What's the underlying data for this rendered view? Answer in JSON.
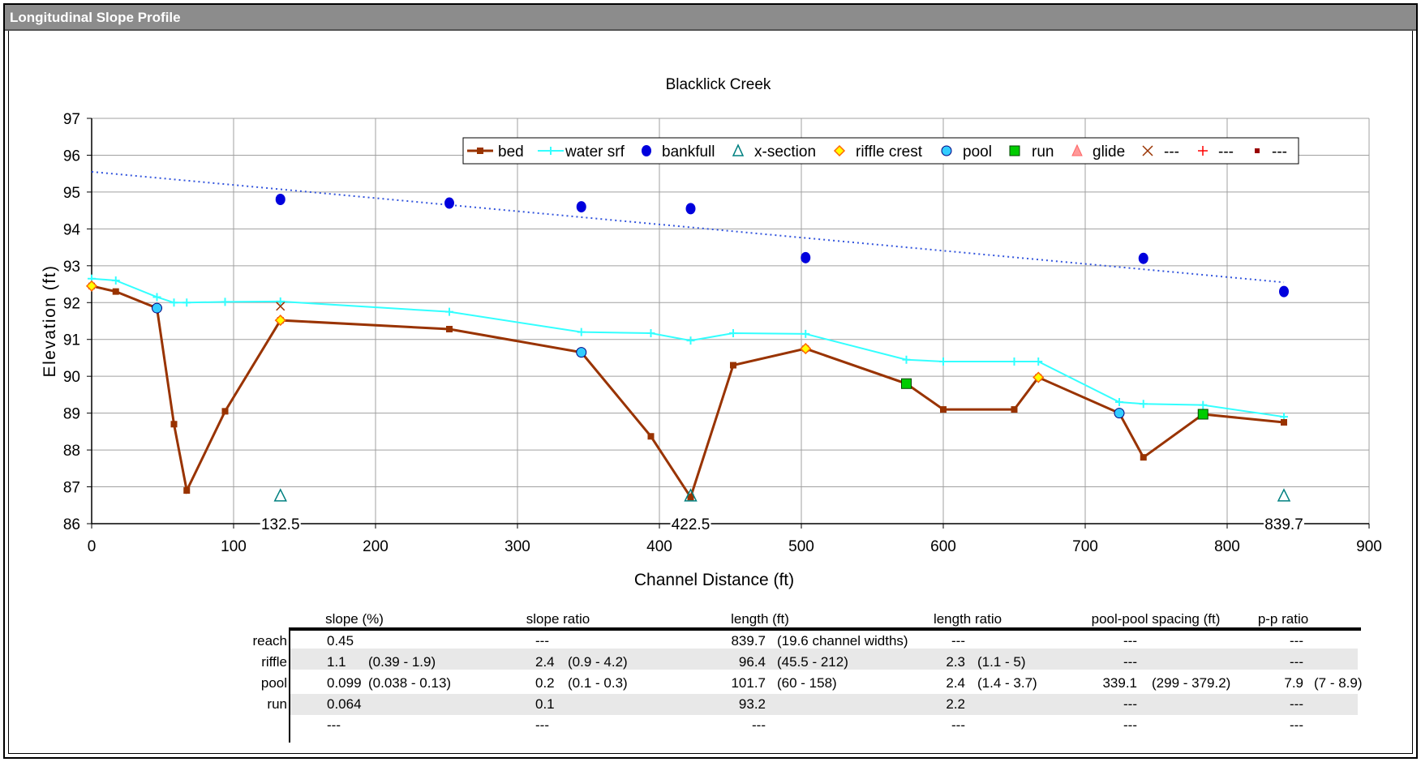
{
  "window": {
    "title": "Longitudinal Slope Profile"
  },
  "chart_data": {
    "type": "line",
    "title": "Blacklick Creek",
    "xlabel": "Channel Distance (ft)",
    "ylabel": "Elevation (ft)",
    "xlim": [
      0,
      900
    ],
    "ylim": [
      86,
      97
    ],
    "xticks": [
      "0",
      "100",
      "200",
      "300",
      "400",
      "500",
      "600",
      "700",
      "800",
      "900"
    ],
    "yticks": [
      "86",
      "87",
      "88",
      "89",
      "90",
      "91",
      "92",
      "93",
      "94",
      "95",
      "96",
      "97"
    ],
    "grid": true,
    "legend_position": "top-right",
    "legend": [
      "bed",
      "water srf",
      "bankfull",
      "x-section",
      "riffle crest",
      "pool",
      "run",
      "glide",
      "---",
      "---",
      "---"
    ],
    "colors": {
      "bed": "#993300",
      "water_srf": "#33ffff",
      "bankfull": "#0000dd",
      "xsection": "#008080",
      "riffle": "#ff9900",
      "pool": "#33ccff",
      "run": "#00cc00",
      "glide": "#ff9999",
      "trend": "#3355dd",
      "x_marker": "#993300",
      "plus_marker": "#ff0000"
    },
    "series": [
      {
        "name": "bed",
        "x": [
          0,
          17,
          46,
          58,
          67,
          94,
          133,
          252,
          345,
          394,
          422,
          452,
          503,
          574,
          600,
          650,
          667,
          724,
          741,
          783,
          840
        ],
        "y": [
          92.45,
          92.3,
          91.85,
          88.7,
          86.9,
          89.05,
          91.52,
          91.28,
          90.65,
          88.37,
          86.72,
          90.3,
          90.75,
          89.8,
          89.1,
          89.1,
          89.97,
          89.0,
          87.8,
          88.97,
          88.75
        ]
      },
      {
        "name": "water srf",
        "x": [
          0,
          17,
          46,
          58,
          67,
          94,
          133,
          252,
          345,
          394,
          422,
          452,
          503,
          574,
          600,
          650,
          667,
          724,
          741,
          783,
          840
        ],
        "y": [
          92.65,
          92.6,
          92.15,
          92.0,
          92.0,
          92.02,
          92.03,
          91.75,
          91.2,
          91.17,
          90.97,
          91.17,
          91.15,
          90.45,
          90.4,
          90.4,
          90.4,
          89.3,
          89.25,
          89.22,
          88.9
        ]
      },
      {
        "name": "bankfull",
        "x": [
          133,
          252,
          345,
          422,
          503,
          741,
          840
        ],
        "y": [
          94.8,
          94.7,
          94.6,
          94.55,
          93.22,
          93.2,
          92.3
        ]
      },
      {
        "name": "x-section",
        "x": [
          133,
          422,
          840
        ],
        "y": [
          86.75,
          86.75,
          86.75
        ]
      },
      {
        "name": "riffle crest",
        "x": [
          0,
          133,
          503,
          667
        ],
        "y": [
          92.45,
          91.52,
          90.75,
          89.97
        ]
      },
      {
        "name": "pool",
        "x": [
          46,
          345,
          724
        ],
        "y": [
          91.85,
          90.65,
          89.0
        ]
      },
      {
        "name": "run",
        "x": [
          574,
          783
        ],
        "y": [
          89.8,
          88.97
        ]
      },
      {
        "name": "x-marker",
        "x": [
          133
        ],
        "y": [
          91.9
        ]
      },
      {
        "name": "bankfull trend",
        "x": [
          0,
          840
        ],
        "y": [
          95.55,
          92.55
        ]
      }
    ],
    "xsection_labels": [
      {
        "x": 133,
        "label": "132.5"
      },
      {
        "x": 422,
        "label": "422.5"
      },
      {
        "x": 840,
        "label": "839.7"
      }
    ]
  },
  "stats": {
    "headers": [
      "slope (%)",
      "slope ratio",
      "length (ft)",
      "length ratio",
      "pool-pool spacing (ft)",
      "p-p ratio"
    ],
    "rows": [
      {
        "label": "reach",
        "slope": "0.45",
        "slope_rng": "",
        "sratio": "---",
        "sratio_rng": "",
        "length": "839.7",
        "length_rng": "(19.6 channel widths)",
        "lratio": "---",
        "lratio_rng": "",
        "pp": "---",
        "pp_rng": "",
        "ppr": "---",
        "ppr_rng": ""
      },
      {
        "label": "riffle",
        "slope": "1.1",
        "slope_rng": "(0.39 - 1.9)",
        "sratio": "2.4",
        "sratio_rng": "(0.9 - 4.2)",
        "length": "96.4",
        "length_rng": "(45.5 - 212)",
        "lratio": "2.3",
        "lratio_rng": "(1.1 - 5)",
        "pp": "---",
        "pp_rng": "",
        "ppr": "---",
        "ppr_rng": ""
      },
      {
        "label": "pool",
        "slope": "0.099",
        "slope_rng": "(0.038 - 0.13)",
        "sratio": "0.2",
        "sratio_rng": "(0.1 - 0.3)",
        "length": "101.7",
        "length_rng": "(60 - 158)",
        "lratio": "2.4",
        "lratio_rng": "(1.4 - 3.7)",
        "pp": "339.1",
        "pp_rng": "(299 - 379.2)",
        "ppr": "7.9",
        "ppr_rng": "(7 - 8.9)"
      },
      {
        "label": "run",
        "slope": "0.064",
        "slope_rng": "",
        "sratio": "0.1",
        "sratio_rng": "",
        "length": "93.2",
        "length_rng": "",
        "lratio": "2.2",
        "lratio_rng": "",
        "pp": "---",
        "pp_rng": "",
        "ppr": "---",
        "ppr_rng": ""
      },
      {
        "label": "",
        "slope": "---",
        "slope_rng": "",
        "sratio": "---",
        "sratio_rng": "",
        "length": "---",
        "length_rng": "",
        "lratio": "---",
        "lratio_rng": "",
        "pp": "---",
        "pp_rng": "",
        "ppr": "---",
        "ppr_rng": ""
      }
    ]
  }
}
